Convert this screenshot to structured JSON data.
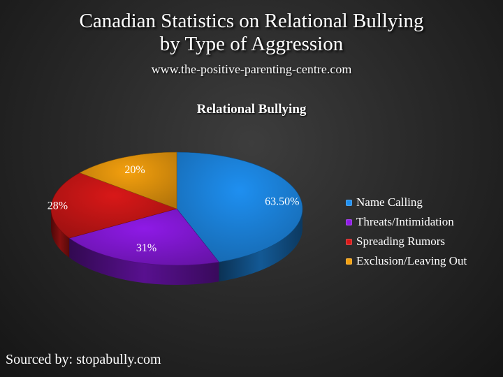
{
  "slide": {
    "title_line1": "Canadian Statistics on Relational Bullying",
    "title_line2": "by Type of Aggression",
    "subtitle": "www.the-positive-parenting-centre.com",
    "footer": "Sourced by:  stopabully.com"
  },
  "chart_data": {
    "type": "pie",
    "title": "Relational Bullying",
    "style": "3d",
    "legend_position": "right",
    "slices": [
      {
        "name": "Name Calling",
        "value": 63.5,
        "label": "63.50%",
        "color": "#1e8ff0"
      },
      {
        "name": "Threats/Intimidation",
        "value": 31,
        "label": "31%",
        "color": "#8e1ae6"
      },
      {
        "name": "Spreading Rumors",
        "value": 28,
        "label": "28%",
        "color": "#d81818"
      },
      {
        "name": "Exclusion/Leaving Out",
        "value": 20,
        "label": "20%",
        "color": "#f4a00e"
      }
    ]
  }
}
